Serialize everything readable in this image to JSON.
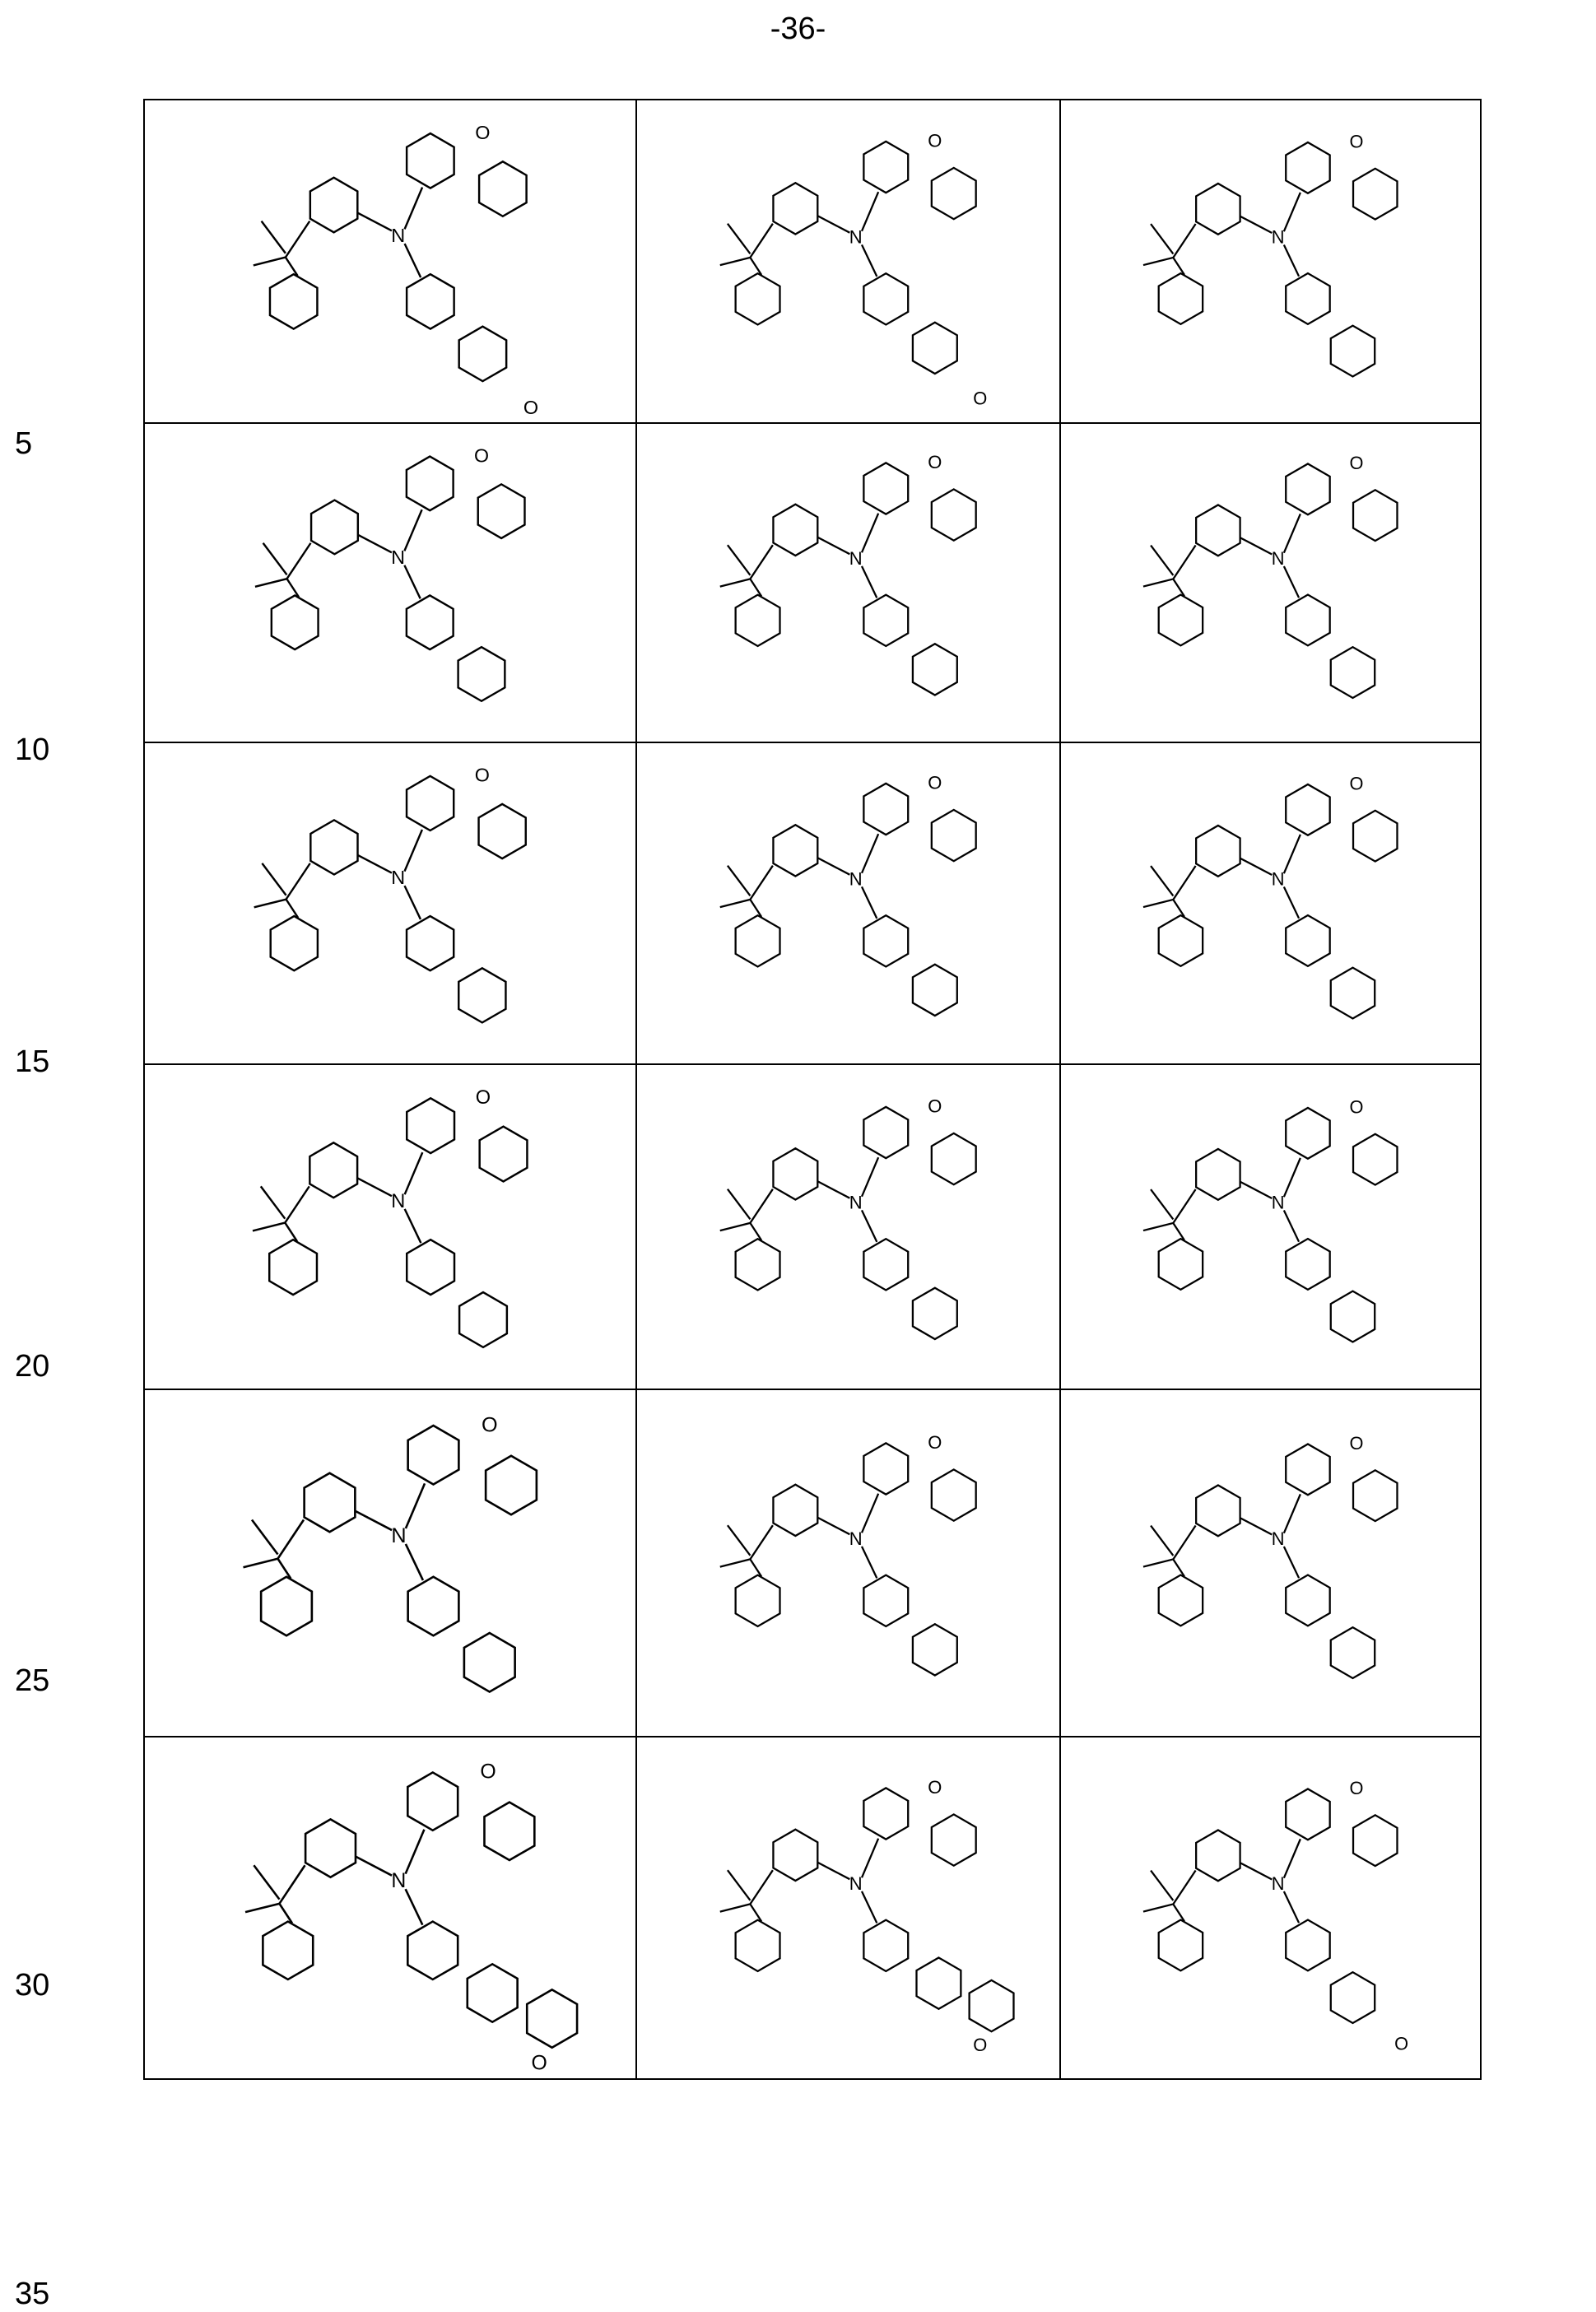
{
  "page_number": "-36-",
  "line_numbers": [
    "5",
    "10",
    "15",
    "20",
    "25",
    "30",
    "35"
  ],
  "structures": [
    {
      "atoms": [
        "N",
        "O",
        "O"
      ]
    },
    {
      "atoms": [
        "N",
        "O",
        "O"
      ]
    },
    {
      "atoms": [
        "N",
        "O"
      ]
    },
    {
      "atoms": [
        "N",
        "O"
      ]
    },
    {
      "atoms": [
        "N",
        "O"
      ]
    },
    {
      "atoms": [
        "N",
        "O"
      ]
    },
    {
      "atoms": [
        "N",
        "O"
      ]
    },
    {
      "atoms": [
        "N",
        "O"
      ]
    },
    {
      "atoms": [
        "N",
        "O"
      ]
    },
    {
      "atoms": [
        "N",
        "O"
      ]
    },
    {
      "atoms": [
        "N",
        "O"
      ]
    },
    {
      "atoms": [
        "N",
        "O"
      ]
    },
    {
      "atoms": [
        "N",
        "O"
      ]
    },
    {
      "atoms": [
        "N",
        "O"
      ]
    },
    {
      "atoms": [
        "N",
        "O"
      ]
    },
    {
      "atoms": [
        "N",
        "O",
        "O"
      ]
    },
    {
      "atoms": [
        "N",
        "O",
        "O"
      ]
    },
    {
      "atoms": [
        "N",
        "O",
        "O"
      ]
    }
  ]
}
